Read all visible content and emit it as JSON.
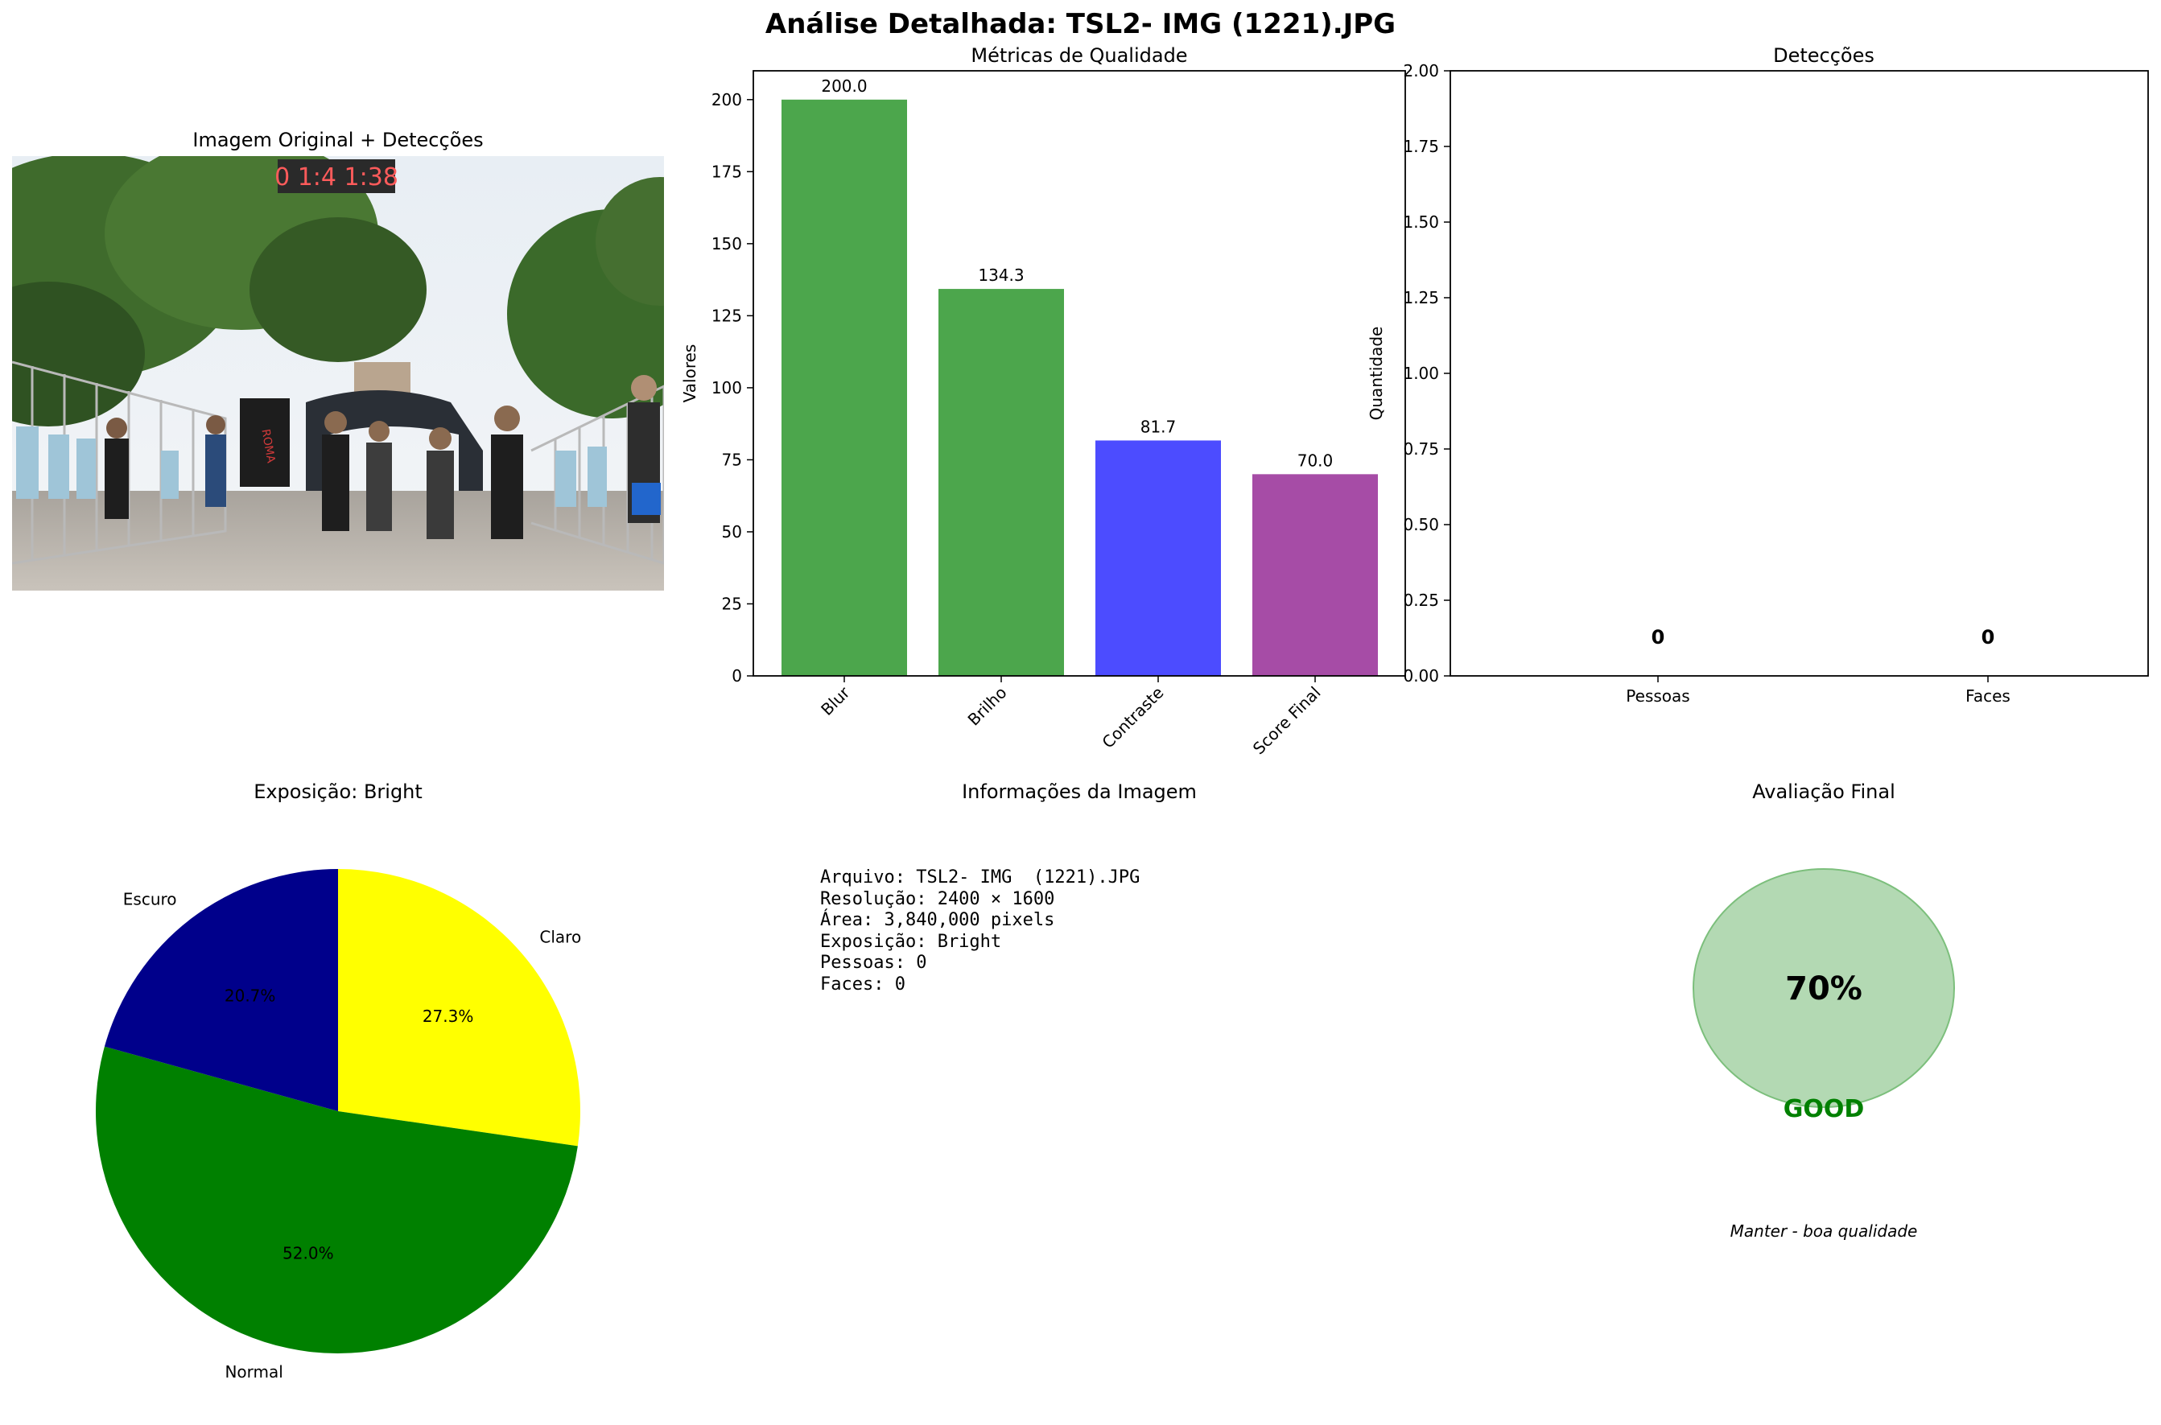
{
  "title": "Análise Detalhada: TSL2- IMG  (1221).JPG",
  "photo": {
    "title": "Imagem Original + Detecções",
    "clock_text": "0 1:4 1:38",
    "banner_text": "ROMA"
  },
  "chart_data": [
    {
      "type": "bar",
      "title": "Métricas de Qualidade",
      "ylabel": "Valores",
      "categories": [
        "Blur",
        "Brilho",
        "Contraste",
        "Score Final"
      ],
      "values": [
        200.0,
        134.3,
        81.7,
        70.0
      ],
      "value_labels": [
        "200.0",
        "134.3",
        "81.7",
        "70.0"
      ],
      "colors": [
        "#4ca64c",
        "#4ca64c",
        "#4c4cff",
        "#a64ca6"
      ],
      "ylim": [
        0,
        210
      ],
      "yticks": [
        0,
        25,
        50,
        75,
        100,
        125,
        150,
        175,
        200
      ],
      "ytick_labels": [
        "0",
        "25",
        "50",
        "75",
        "100",
        "125",
        "150",
        "175",
        "200"
      ]
    },
    {
      "type": "bar",
      "title": "Detecções",
      "ylabel": "Quantidade",
      "categories": [
        "Pessoas",
        "Faces"
      ],
      "values": [
        0,
        0
      ],
      "value_labels": [
        "0",
        "0"
      ],
      "ylim": [
        0,
        2
      ],
      "yticks": [
        0,
        0.25,
        0.5,
        0.75,
        1.0,
        1.25,
        1.5,
        1.75,
        2.0
      ],
      "ytick_labels": [
        "0.00",
        "0.25",
        "0.50",
        "0.75",
        "1.00",
        "1.25",
        "1.50",
        "1.75",
        "2.00"
      ]
    },
    {
      "type": "pie",
      "title": "Exposição: Bright",
      "labels": [
        "Claro",
        "Normal",
        "Escuro"
      ],
      "values": [
        27.3,
        52.0,
        20.7
      ],
      "pct_labels": [
        "27.3%",
        "52.0%",
        "20.7%"
      ],
      "colors": [
        "#ffff00",
        "#008000",
        "#00008b"
      ]
    }
  ],
  "info": {
    "title": "Informações da Imagem",
    "lines": [
      "Arquivo: TSL2- IMG  (1221).JPG",
      "Resolução: 2400 × 1600",
      "Área: 3,840,000 pixels",
      "Exposição: Bright",
      "Pessoas: 0",
      "Faces: 0"
    ]
  },
  "evaluation": {
    "title": "Avaliação Final",
    "score": 70,
    "score_label": "70%",
    "grade": "GOOD",
    "recommendation": "Manter - boa qualidade",
    "circle_color": "#b3d9b3",
    "grade_color": "#008000"
  }
}
